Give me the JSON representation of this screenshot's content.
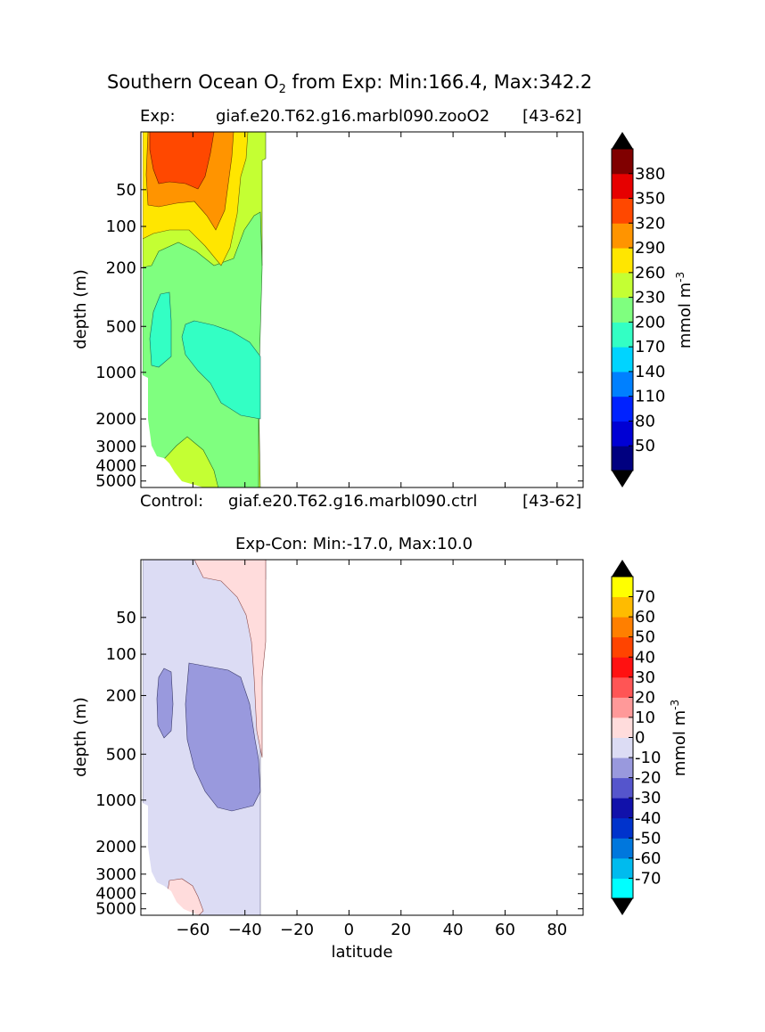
{
  "title": {
    "prefix": "Southern Ocean O",
    "subscript": "2",
    "suffix": " from Exp: Min:166.4, Max:342.2"
  },
  "top_panel": {
    "exp_label": "Exp:",
    "exp_case": "giaf.e20.T62.g16.marbl090.zooO2",
    "exp_years": "[43-62]",
    "control_label": "Control:",
    "control_case": "giaf.e20.T62.g16.marbl090.ctrl",
    "control_years": "[43-62]"
  },
  "bottom_panel": {
    "title": "Exp-Con: Min:-17.0, Max:10.0"
  },
  "colors": {
    "top_levels": [
      "#000080",
      "#0000d4",
      "#0022ff",
      "#0080ff",
      "#00d4ff",
      "#33ffc4",
      "#7fff7f",
      "#c4ff33",
      "#ffe600",
      "#ff9400",
      "#ff4800",
      "#e60000",
      "#800000"
    ],
    "diff_levels": [
      "#00ffff",
      "#00bbee",
      "#0077dd",
      "#0033cc",
      "#1111aa",
      "#5555cc",
      "#9999dd",
      "#dcdcf4",
      "#ffdcdc",
      "#ff9999",
      "#ff5555",
      "#ff1111",
      "#ff4400",
      "#ff7f00",
      "#ffbb00",
      "#ffff00"
    ]
  },
  "chart_data": [
    {
      "type": "contour",
      "panel": "top",
      "title": "Exp: giaf.e20.T62.g16.marbl090.zooO2 [43-62]",
      "xlabel": "latitude",
      "ylabel": "depth (m)",
      "xlim": [
        -80,
        90
      ],
      "ylim_depth": [
        10,
        5500
      ],
      "x_ticks": [
        -60,
        -40,
        -20,
        0,
        20,
        40,
        60,
        80
      ],
      "y_ticks": [
        50,
        100,
        200,
        500,
        1000,
        2000,
        3000,
        4000,
        5000
      ],
      "data_extent_lat": [
        -80,
        -33
      ],
      "colorbar": {
        "label": "mmol m",
        "label_sup": "-3",
        "levels": [
          20,
          50,
          80,
          110,
          140,
          170,
          200,
          230,
          260,
          290,
          320,
          350,
          380
        ],
        "tick_labels": [
          "50",
          "80",
          "110",
          "140",
          "170",
          "200",
          "230",
          "260",
          "290",
          "320",
          "350",
          "380"
        ],
        "extend": "both"
      },
      "min": 166.4,
      "max": 342.2
    },
    {
      "type": "contour",
      "panel": "bottom",
      "title": "Exp-Con: Min:-17.0, Max:10.0",
      "xlabel": "latitude",
      "ylabel": "depth (m)",
      "xlim": [
        -80,
        90
      ],
      "x_ticks": [
        -60,
        -40,
        -20,
        0,
        20,
        40,
        60,
        80
      ],
      "x_tick_labels": [
        "−60",
        "−40",
        "−20",
        "0",
        "20",
        "40",
        "60",
        "80"
      ],
      "y_ticks": [
        50,
        100,
        200,
        500,
        1000,
        2000,
        3000,
        4000,
        5000
      ],
      "colorbar": {
        "label": "mmol m",
        "label_sup": "-3",
        "levels": [
          -80,
          -70,
          -60,
          -50,
          -40,
          -30,
          -20,
          -10,
          0,
          10,
          20,
          30,
          40,
          50,
          60,
          70,
          80
        ],
        "tick_labels": [
          "-70",
          "-60",
          "-50",
          "-40",
          "-30",
          "-20",
          "-10",
          "0",
          "10",
          "20",
          "30",
          "40",
          "50",
          "60",
          "70"
        ],
        "extend": "both"
      },
      "min": -17.0,
      "max": 10.0
    }
  ]
}
